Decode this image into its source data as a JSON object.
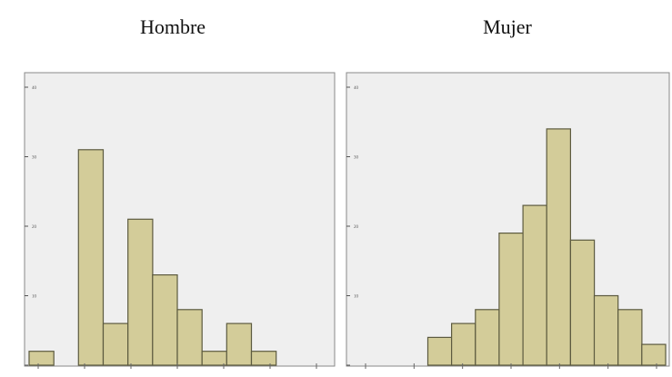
{
  "chart_data": [
    {
      "type": "bar",
      "title": "Hombre",
      "xlabel": "",
      "ylabel": "",
      "ylim": [
        0,
        40
      ],
      "yticks": [
        "0",
        "10",
        "20",
        "30",
        "40"
      ],
      "bin_count": 12,
      "values": [
        2,
        0,
        31,
        6,
        21,
        13,
        8,
        2,
        6,
        2,
        0,
        0
      ],
      "grid": false,
      "colors": {
        "bar_fill": "#d3cc99",
        "bar_stroke": "#5c5a3f",
        "plot_bg": "#efefef",
        "frame": "#8a8a8a"
      }
    },
    {
      "type": "bar",
      "title": "Mujer",
      "xlabel": "",
      "ylabel": "",
      "ylim": [
        0,
        40
      ],
      "yticks": [
        "0",
        "10",
        "20",
        "30",
        "40"
      ],
      "bin_count": 13,
      "values": [
        0,
        0,
        0,
        4,
        6,
        8,
        19,
        23,
        34,
        18,
        10,
        8,
        3
      ],
      "grid": false,
      "colors": {
        "bar_fill": "#d3cc99",
        "bar_stroke": "#5c5a3f",
        "plot_bg": "#efefef",
        "frame": "#8a8a8a"
      }
    }
  ]
}
